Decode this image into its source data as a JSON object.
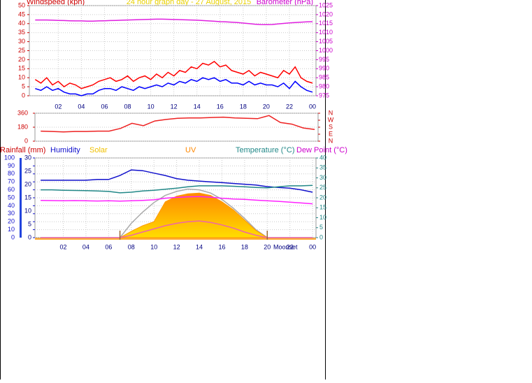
{
  "chart_data": [
    {
      "type": "line",
      "title": "24 hour graph day - 27 August, 2015",
      "y_label": "Windspeed (kph)",
      "y2_label": "Barometer (hPa)",
      "x": [
        0,
        0.5,
        1,
        1.5,
        2,
        2.5,
        3,
        3.5,
        4,
        4.5,
        5,
        5.5,
        6,
        6.5,
        7,
        7.5,
        8,
        8.5,
        9,
        9.5,
        10,
        10.5,
        11,
        11.5,
        12,
        12.5,
        13,
        13.5,
        14,
        14.5,
        15,
        15.5,
        16,
        16.5,
        17,
        17.5,
        18,
        18.5,
        19,
        19.5,
        20,
        20.5,
        21,
        21.5,
        22,
        22.5,
        23,
        23.5,
        24
      ],
      "series": [
        {
          "color": "#ff0000",
          "values": [
            9,
            7,
            10,
            6,
            8,
            5,
            7,
            6,
            4,
            5,
            6,
            8,
            9,
            10,
            8,
            9,
            11,
            8,
            10,
            11,
            9,
            12,
            10,
            13,
            11,
            14,
            13,
            16,
            15,
            18,
            17,
            19,
            16,
            17,
            14,
            13,
            12,
            14,
            11,
            13,
            12,
            11,
            10,
            14,
            12,
            16,
            10,
            8,
            7
          ]
        },
        {
          "color": "#0000ff",
          "values": [
            4,
            3,
            5,
            3,
            4,
            2,
            1,
            1,
            0,
            1,
            1,
            3,
            4,
            4,
            3,
            5,
            4,
            3,
            5,
            4,
            5,
            6,
            5,
            7,
            6,
            8,
            7,
            9,
            8,
            10,
            9,
            10,
            8,
            9,
            7,
            7,
            6,
            8,
            6,
            7,
            6,
            6,
            5,
            7,
            4,
            8,
            5,
            3,
            2
          ]
        },
        {
          "color": "#e020e0",
          "axis": "y2",
          "values": [
            1017,
            1017,
            1017,
            1016.9,
            1016.8,
            1016.7,
            1016.6,
            1016.5,
            1016.5,
            1016.4,
            1016.4,
            1016.5,
            1016.6,
            1016.7,
            1016.8,
            1016.9,
            1017,
            1017.1,
            1017.2,
            1017.3,
            1017.4,
            1017.5,
            1017.5,
            1017.4,
            1017.3,
            1017.2,
            1017.1,
            1017,
            1016.9,
            1016.7,
            1016.5,
            1016.3,
            1016.1,
            1016,
            1015.8,
            1015.6,
            1015.3,
            1015,
            1014.7,
            1014.5,
            1014.4,
            1014.5,
            1014.8,
            1015.1,
            1015.4,
            1015.6,
            1015.8,
            1016,
            1016.1
          ]
        }
      ],
      "xlim": [
        -0.5,
        24.3
      ],
      "xticks": [
        {
          "value": 2,
          "label": "02"
        },
        {
          "value": 4,
          "label": "04"
        },
        {
          "value": 6,
          "label": "06"
        },
        {
          "value": 8,
          "label": "08"
        },
        10,
        12,
        14,
        16,
        18,
        20,
        22,
        {
          "value": 24,
          "label": "00"
        }
      ],
      "ylim": [
        0,
        50
      ],
      "yticks": [
        0,
        5,
        10,
        15,
        20,
        25,
        30,
        35,
        40,
        45,
        50
      ],
      "y_color": "#cc0000",
      "y2lim": [
        975,
        1025
      ],
      "y2ticks": [
        975,
        980,
        985,
        990,
        995,
        1000,
        1005,
        1010,
        1015,
        1020,
        1025
      ],
      "y2_color": "#cc00cc",
      "grid": true
    },
    {
      "type": "line",
      "x": [
        0,
        1,
        2,
        3,
        4,
        5,
        6,
        7,
        8,
        9,
        10,
        11,
        12,
        13,
        14,
        15,
        16,
        17,
        18,
        19,
        20,
        21,
        22,
        23,
        24
      ],
      "series": [
        {
          "color": "#ee2222",
          "values": [
            130,
            125,
            120,
            125,
            125,
            130,
            130,
            165,
            230,
            200,
            260,
            280,
            295,
            300,
            300,
            305,
            310,
            300,
            295,
            290,
            330,
            240,
            220,
            170,
            150
          ]
        }
      ],
      "xlim": [
        -0.5,
        24.3
      ],
      "ylim": [
        0,
        360
      ],
      "yticks": [
        0,
        180,
        360
      ],
      "y_color": "#cc0000",
      "y2lim": [
        0,
        360
      ],
      "y2ticks": [
        {
          "value": 360,
          "label": "N"
        },
        {
          "value": 270,
          "label": "W"
        },
        {
          "value": 180,
          "label": "S"
        },
        {
          "value": 90,
          "label": "E"
        },
        {
          "value": 0,
          "label": "N"
        }
      ],
      "y2_color": "#cc0000",
      "grid": true
    },
    {
      "type": "line",
      "rain_label": "Rainfall (mm)",
      "x": [
        0,
        1,
        2,
        3,
        4,
        5,
        6,
        7,
        8,
        9,
        10,
        11,
        12,
        13,
        14,
        15,
        16,
        17,
        18,
        19,
        20,
        21,
        22,
        23,
        24
      ],
      "series": [
        {
          "color": "#aaaaaa",
          "values": [
            0,
            0,
            0,
            0,
            0,
            0,
            0,
            0,
            18,
            32,
            44,
            53,
            58,
            61,
            60,
            56,
            48,
            37,
            24,
            10,
            0,
            0,
            0,
            0,
            0
          ]
        },
        {
          "name": "Solar",
          "color": "#ff9900",
          "area": true,
          "values": [
            0,
            0,
            0,
            0,
            0,
            0,
            0,
            0,
            8,
            15,
            20,
            45,
            52,
            55,
            56,
            53,
            45,
            35,
            22,
            9,
            0,
            0,
            0,
            0,
            0
          ]
        },
        {
          "name": "UV",
          "color": "#ee66aa",
          "values": [
            0,
            0,
            0,
            0,
            0,
            0,
            0,
            0,
            3,
            7,
            11,
            15,
            18,
            20,
            21,
            19,
            16,
            12,
            7,
            3,
            0,
            0,
            0,
            0,
            0
          ]
        },
        {
          "name": "Humidity",
          "color": "#1111cc",
          "values": [
            72,
            72,
            72,
            72,
            72,
            73,
            73,
            78,
            85,
            84,
            81,
            78,
            74,
            72,
            71,
            70,
            69,
            68,
            67,
            66,
            64,
            63,
            62,
            60,
            57
          ]
        },
        {
          "name": "Temperature (°C)",
          "color": "#228888",
          "axis": "y2",
          "values": [
            24,
            24,
            23.8,
            23.7,
            23.6,
            23.4,
            23.2,
            22.5,
            22.8,
            23.4,
            23.8,
            24.3,
            24.8,
            25.5,
            26,
            26,
            26,
            25.8,
            25.5,
            25.2,
            25,
            25.5,
            26,
            26,
            26.2
          ]
        },
        {
          "name": "Dew Point (°C)",
          "color": "#ff22ff",
          "axis": "y2",
          "values": [
            18.7,
            18.6,
            18.5,
            18.6,
            18.5,
            18.4,
            18.5,
            18.3,
            18.5,
            18.7,
            19,
            19.8,
            20.2,
            20.5,
            20.6,
            20.3,
            19.8,
            19.4,
            19.2,
            18.8,
            18.5,
            18.2,
            17.8,
            17.4,
            17
          ]
        }
      ],
      "xlim": [
        -0.5,
        24.3
      ],
      "xticks": [
        {
          "value": 2,
          "label": "02"
        },
        {
          "value": 4,
          "label": "04"
        },
        {
          "value": 6,
          "label": "06"
        },
        {
          "value": 8,
          "label": "08"
        },
        10,
        12,
        14,
        16,
        18,
        20,
        22,
        {
          "value": 24,
          "label": "00"
        }
      ],
      "ylim": [
        0,
        100
      ],
      "yticks": [
        0,
        10,
        20,
        30,
        40,
        50,
        60,
        70,
        80,
        90,
        100
      ],
      "y_color": "#1111cc",
      "rain_lim": [
        0,
        30
      ],
      "rain_ticks": [
        0,
        5,
        10,
        15,
        20,
        25,
        30
      ],
      "rain_color": "#000080",
      "y2lim": [
        0,
        40
      ],
      "y2ticks": [
        0,
        5,
        10,
        15,
        20,
        25,
        30,
        35,
        40
      ],
      "y2_color": "#228888",
      "sunrise": 7,
      "sunset": 20,
      "annotations": [
        {
          "x": 21.6,
          "text": "Moonset"
        }
      ],
      "grid": true
    }
  ]
}
